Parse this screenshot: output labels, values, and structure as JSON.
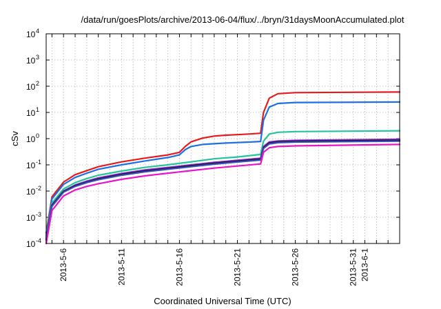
{
  "chart_data": {
    "type": "line",
    "title": "/data/run/goesPlots/archive/2013-06-04/flux/../bryn/31daysMoonAccumulated.plot",
    "xlabel": "Coordinated Universal Time (UTC)",
    "ylabel": "cSv",
    "x_range": [
      "2013-05-04T12:00",
      "2013-06-04T00:00"
    ],
    "x_ticks": [
      "2013-5-6",
      "2013-5-11",
      "2013-5-16",
      "2013-5-21",
      "2013-5-26",
      "2013-5-31",
      "2013-6-1"
    ],
    "y_scale": "log",
    "ylim": [
      0.0001,
      10000
    ],
    "y_ticks": [
      {
        "value": 0.0001,
        "base": "10",
        "exp": "-4"
      },
      {
        "value": 0.001,
        "base": "10",
        "exp": "-3"
      },
      {
        "value": 0.01,
        "base": "10",
        "exp": "-2"
      },
      {
        "value": 0.1,
        "base": "10",
        "exp": "-1"
      },
      {
        "value": 1,
        "base": "10",
        "exp": "0"
      },
      {
        "value": 10,
        "base": "10",
        "exp": "1"
      },
      {
        "value": 100,
        "base": "10",
        "exp": "2"
      },
      {
        "value": 1000,
        "base": "10",
        "exp": "3"
      },
      {
        "value": 10000,
        "base": "10",
        "exp": "4"
      }
    ],
    "grid": true,
    "legend": "none",
    "series": [
      {
        "color": "#e41a1c",
        "points": [
          [
            "2013-05-04T12:00",
            0.00025
          ],
          [
            "2013-05-05T00:00",
            0.006
          ],
          [
            "2013-05-06T00:00",
            0.022
          ],
          [
            "2013-05-07T00:00",
            0.042
          ],
          [
            "2013-05-08T00:00",
            0.06
          ],
          [
            "2013-05-09T00:00",
            0.085
          ],
          [
            "2013-05-11T00:00",
            0.13
          ],
          [
            "2013-05-13T00:00",
            0.18
          ],
          [
            "2013-05-15T00:00",
            0.24
          ],
          [
            "2013-05-16T00:00",
            0.3
          ],
          [
            "2013-05-16T12:00",
            0.5
          ],
          [
            "2013-05-17T00:00",
            0.75
          ],
          [
            "2013-05-18T00:00",
            1.05
          ],
          [
            "2013-05-19T00:00",
            1.25
          ],
          [
            "2013-05-20T00:00",
            1.35
          ],
          [
            "2013-05-21T00:00",
            1.42
          ],
          [
            "2013-05-22T00:00",
            1.5
          ],
          [
            "2013-05-23T00:00",
            1.6
          ],
          [
            "2013-05-23T06:00",
            10
          ],
          [
            "2013-05-23T18:00",
            35
          ],
          [
            "2013-05-24T12:00",
            52
          ],
          [
            "2013-05-26T00:00",
            57
          ],
          [
            "2013-06-04T00:00",
            60
          ]
        ]
      },
      {
        "color": "#1e6fe0",
        "points": [
          [
            "2013-05-04T12:00",
            0.0002
          ],
          [
            "2013-05-05T00:00",
            0.005
          ],
          [
            "2013-05-06T00:00",
            0.018
          ],
          [
            "2013-05-07T00:00",
            0.033
          ],
          [
            "2013-05-08T00:00",
            0.048
          ],
          [
            "2013-05-09T00:00",
            0.068
          ],
          [
            "2013-05-11T00:00",
            0.1
          ],
          [
            "2013-05-13T00:00",
            0.14
          ],
          [
            "2013-05-15T00:00",
            0.19
          ],
          [
            "2013-05-16T00:00",
            0.24
          ],
          [
            "2013-05-16T12:00",
            0.38
          ],
          [
            "2013-05-17T00:00",
            0.5
          ],
          [
            "2013-05-18T00:00",
            0.6
          ],
          [
            "2013-05-20T00:00",
            0.68
          ],
          [
            "2013-05-22T00:00",
            0.74
          ],
          [
            "2013-05-23T00:00",
            0.78
          ],
          [
            "2013-05-23T06:00",
            5
          ],
          [
            "2013-05-23T18:00",
            16
          ],
          [
            "2013-05-24T12:00",
            22
          ],
          [
            "2013-05-26T00:00",
            24
          ],
          [
            "2013-06-04T00:00",
            25
          ]
        ]
      },
      {
        "color": "#22c49a",
        "points": [
          [
            "2013-05-04T12:00",
            0.00018
          ],
          [
            "2013-05-05T00:00",
            0.0035
          ],
          [
            "2013-05-06T00:00",
            0.012
          ],
          [
            "2013-05-07T00:00",
            0.021
          ],
          [
            "2013-05-08T00:00",
            0.03
          ],
          [
            "2013-05-09T00:00",
            0.04
          ],
          [
            "2013-05-11T00:00",
            0.058
          ],
          [
            "2013-05-13T00:00",
            0.08
          ],
          [
            "2013-05-15T00:00",
            0.1
          ],
          [
            "2013-05-17T00:00",
            0.13
          ],
          [
            "2013-05-19T00:00",
            0.17
          ],
          [
            "2013-05-21T00:00",
            0.2
          ],
          [
            "2013-05-23T00:00",
            0.25
          ],
          [
            "2013-05-23T06:00",
            0.8
          ],
          [
            "2013-05-23T18:00",
            1.5
          ],
          [
            "2013-05-24T12:00",
            1.75
          ],
          [
            "2013-05-26T00:00",
            1.85
          ],
          [
            "2013-06-04T00:00",
            2.0
          ]
        ]
      },
      {
        "color": "#8a2be2",
        "points": [
          [
            "2013-05-04T12:00",
            0.00015
          ],
          [
            "2013-05-05T00:00",
            0.003
          ],
          [
            "2013-05-06T00:00",
            0.01
          ],
          [
            "2013-05-07T00:00",
            0.017
          ],
          [
            "2013-05-08T00:00",
            0.024
          ],
          [
            "2013-05-09T00:00",
            0.032
          ],
          [
            "2013-05-11T00:00",
            0.047
          ],
          [
            "2013-05-13T00:00",
            0.064
          ],
          [
            "2013-05-15T00:00",
            0.08
          ],
          [
            "2013-05-17T00:00",
            0.1
          ],
          [
            "2013-05-19T00:00",
            0.125
          ],
          [
            "2013-05-21T00:00",
            0.15
          ],
          [
            "2013-05-23T00:00",
            0.18
          ],
          [
            "2013-05-23T06:00",
            0.5
          ],
          [
            "2013-05-23T18:00",
            0.75
          ],
          [
            "2013-05-24T12:00",
            0.82
          ],
          [
            "2013-05-26T00:00",
            0.86
          ],
          [
            "2013-06-04T00:00",
            0.95
          ]
        ]
      },
      {
        "color": "#1a1a1a",
        "points": [
          [
            "2013-05-04T12:00",
            0.00014
          ],
          [
            "2013-05-05T00:00",
            0.0028
          ],
          [
            "2013-05-06T00:00",
            0.0095
          ],
          [
            "2013-05-07T00:00",
            0.016
          ],
          [
            "2013-05-08T00:00",
            0.022
          ],
          [
            "2013-05-09T00:00",
            0.029
          ],
          [
            "2013-05-11T00:00",
            0.043
          ],
          [
            "2013-05-13T00:00",
            0.058
          ],
          [
            "2013-05-15T00:00",
            0.073
          ],
          [
            "2013-05-17T00:00",
            0.092
          ],
          [
            "2013-05-19T00:00",
            0.115
          ],
          [
            "2013-05-21T00:00",
            0.138
          ],
          [
            "2013-05-23T00:00",
            0.165
          ],
          [
            "2013-05-23T06:00",
            0.45
          ],
          [
            "2013-05-23T18:00",
            0.68
          ],
          [
            "2013-05-24T12:00",
            0.75
          ],
          [
            "2013-05-26T00:00",
            0.79
          ],
          [
            "2013-06-04T00:00",
            0.86
          ]
        ]
      },
      {
        "color": "#3a4db8",
        "points": [
          [
            "2013-05-04T12:00",
            0.00013
          ],
          [
            "2013-05-05T00:00",
            0.0026
          ],
          [
            "2013-05-06T00:00",
            0.009
          ],
          [
            "2013-05-07T00:00",
            0.015
          ],
          [
            "2013-05-08T00:00",
            0.021
          ],
          [
            "2013-05-09T00:00",
            0.027
          ],
          [
            "2013-05-11T00:00",
            0.04
          ],
          [
            "2013-05-13T00:00",
            0.054
          ],
          [
            "2013-05-15T00:00",
            0.068
          ],
          [
            "2013-05-17T00:00",
            0.085
          ],
          [
            "2013-05-19T00:00",
            0.106
          ],
          [
            "2013-05-21T00:00",
            0.128
          ],
          [
            "2013-05-23T00:00",
            0.153
          ],
          [
            "2013-05-23T06:00",
            0.42
          ],
          [
            "2013-05-23T18:00",
            0.63
          ],
          [
            "2013-05-24T12:00",
            0.7
          ],
          [
            "2013-05-26T00:00",
            0.74
          ],
          [
            "2013-06-04T00:00",
            0.8
          ]
        ]
      },
      {
        "color": "#e815c8",
        "points": [
          [
            "2013-05-04T12:00",
            0.0001
          ],
          [
            "2013-05-05T00:00",
            0.0018
          ],
          [
            "2013-05-06T00:00",
            0.0065
          ],
          [
            "2013-05-07T00:00",
            0.011
          ],
          [
            "2013-05-08T00:00",
            0.015
          ],
          [
            "2013-05-09T00:00",
            0.019
          ],
          [
            "2013-05-11T00:00",
            0.028
          ],
          [
            "2013-05-13T00:00",
            0.038
          ],
          [
            "2013-05-15T00:00",
            0.048
          ],
          [
            "2013-05-17T00:00",
            0.06
          ],
          [
            "2013-05-19T00:00",
            0.075
          ],
          [
            "2013-05-21T00:00",
            0.09
          ],
          [
            "2013-05-23T00:00",
            0.108
          ],
          [
            "2013-05-23T06:00",
            0.3
          ],
          [
            "2013-05-23T18:00",
            0.45
          ],
          [
            "2013-05-24T12:00",
            0.5
          ],
          [
            "2013-05-26T00:00",
            0.53
          ],
          [
            "2013-06-04T00:00",
            0.6
          ]
        ]
      }
    ]
  }
}
